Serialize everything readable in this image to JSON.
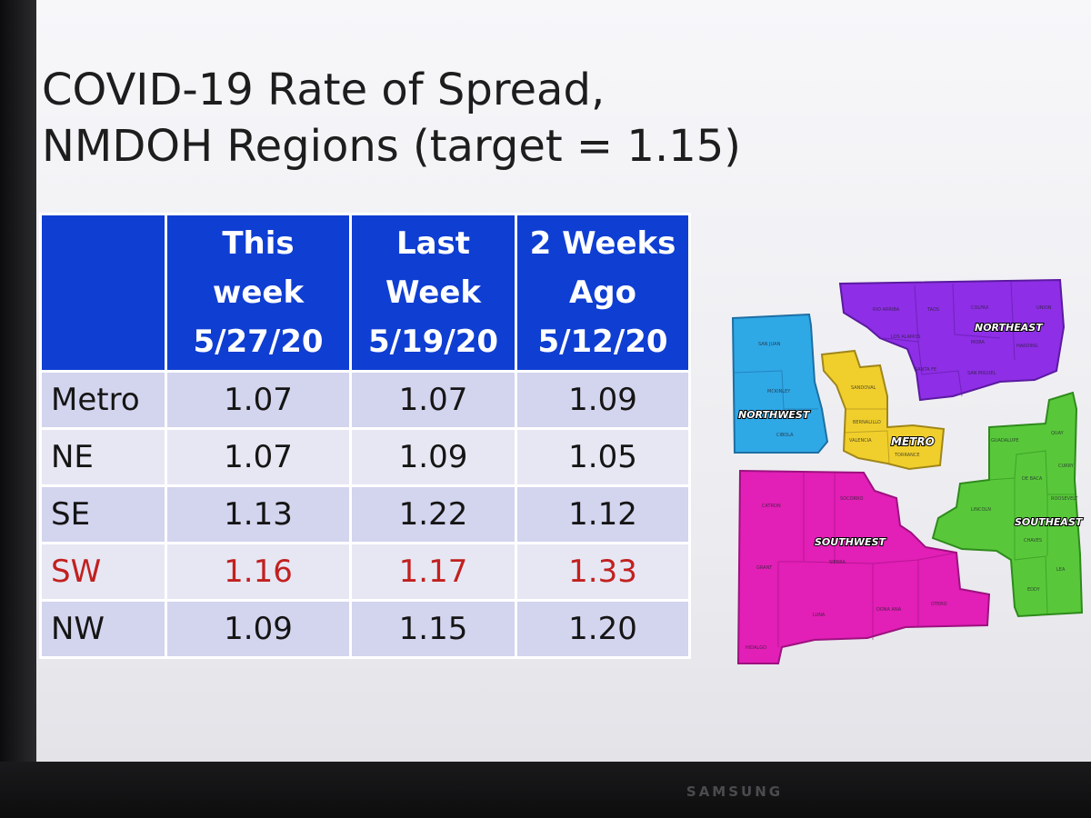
{
  "title": {
    "line1": "COVID-19 Rate of Spread,",
    "line2": "NMDOH Regions (target = 1.15)"
  },
  "table": {
    "headers": [
      {
        "lines": []
      },
      {
        "lines": [
          "This",
          "week",
          "5/27/20"
        ]
      },
      {
        "lines": [
          "Last",
          "Week",
          "5/19/20"
        ]
      },
      {
        "lines": [
          "2 Weeks",
          "Ago",
          "5/12/20"
        ]
      }
    ],
    "rows": [
      {
        "region": "Metro",
        "values": [
          "1.07",
          "1.07",
          "1.09"
        ],
        "highlight": false
      },
      {
        "region": "NE",
        "values": [
          "1.07",
          "1.09",
          "1.05"
        ],
        "highlight": false
      },
      {
        "region": "SE",
        "values": [
          "1.13",
          "1.22",
          "1.12"
        ],
        "highlight": false
      },
      {
        "region": "SW",
        "values": [
          "1.16",
          "1.17",
          "1.33"
        ],
        "highlight": true
      },
      {
        "region": "NW",
        "values": [
          "1.09",
          "1.15",
          "1.20"
        ],
        "highlight": false
      }
    ]
  },
  "map": {
    "regions": [
      {
        "label": "NORTHWEST",
        "color": "#2fa8e6"
      },
      {
        "label": "NORTHEAST",
        "color": "#8e2ee6"
      },
      {
        "label": "METRO",
        "color": "#f0cf2c"
      },
      {
        "label": "SOUTHWEST",
        "color": "#e21fb6"
      },
      {
        "label": "SOUTHEAST",
        "color": "#58c83a"
      }
    ],
    "counties": [
      "SAN JUAN",
      "MCKINLEY",
      "CIBOLA",
      "RIO ARRIBA",
      "TAOS",
      "COLFAX",
      "UNION",
      "LOS ALAMOS",
      "MORA",
      "HARDING",
      "SANTA FE",
      "SAN MIGUEL",
      "SANDOVAL",
      "BERNALILLO",
      "VALENCIA",
      "TORRANCE",
      "CATRON",
      "SOCORRO",
      "GRANT",
      "SIERRA",
      "OTERO",
      "LUNA",
      "DONA ANA",
      "HIDALGO",
      "GUADALUPE",
      "QUAY",
      "CURRY",
      "DE BACA",
      "ROOSEVELT",
      "LINCOLN",
      "CHAVES",
      "LEA",
      "EDDY"
    ]
  },
  "monitor": {
    "brand": "SAMSUNG"
  },
  "colors": {
    "header_bg": "#0f3ed2",
    "row_odd": "#d3d4ee",
    "row_even": "#e7e7f4",
    "highlight_text": "#c1211f"
  }
}
